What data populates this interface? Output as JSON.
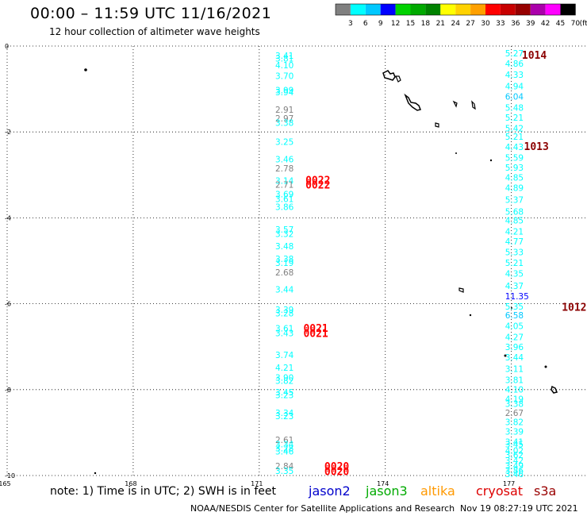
{
  "header": {
    "title": "00:00 – 11:59 UTC 11/16/2021",
    "subtitle": "12 hour collection of altimeter wave heights"
  },
  "color_scale": {
    "labels": [
      "3",
      "6",
      "9",
      "12",
      "15",
      "18",
      "21",
      "24",
      "27",
      "30",
      "33",
      "36",
      "39",
      "42",
      "45",
      "70",
      "(ft)"
    ],
    "colors": [
      "#808080",
      "#00ffff",
      "#00c8ff",
      "#0000ff",
      "#00d200",
      "#00aa00",
      "#008200",
      "#ffff00",
      "#ffd200",
      "#ffa000",
      "#ff0000",
      "#c80000",
      "#960000",
      "#aa00aa",
      "#ff00ff",
      "#000000"
    ]
  },
  "footer": {
    "note": "note: 1) Time is in UTC; 2) SWH is in feet",
    "satellites": [
      {
        "name": "jason2",
        "color": "#0000cc"
      },
      {
        "name": "jason3",
        "color": "#00aa00"
      },
      {
        "name": "altika",
        "color": "#ff9900"
      },
      {
        "name": "cryosat",
        "color": "#dd0000"
      },
      {
        "name": "s3a",
        "color": "#990000"
      }
    ],
    "credit": "NOAA/NESDIS Center for Satellite Applications and Research",
    "generated": "Nov 19 08:27:19 UTC 2021"
  },
  "chart_data": {
    "type": "scatter",
    "x_ticks": [
      "165",
      "168",
      "171",
      "174",
      "177"
    ],
    "y_ticks": [
      "0",
      "-2",
      "-4",
      "-6",
      "-8",
      "-10"
    ],
    "xlim": [
      165,
      178.8
    ],
    "ylim": [
      -10,
      0
    ],
    "grid": true,
    "tracks": [
      {
        "satellite": "cryosat",
        "points": [
          {
            "x": 171.38,
            "y": -0.22,
            "v": "3.41"
          },
          {
            "x": 171.38,
            "y": -0.29,
            "v": "3.81"
          },
          {
            "x": 171.38,
            "y": -0.44,
            "v": "4.10"
          },
          {
            "x": 171.38,
            "y": -0.69,
            "v": "3.70"
          },
          {
            "x": 171.38,
            "y": -1.03,
            "v": "3.99"
          },
          {
            "x": 171.38,
            "y": -1.07,
            "v": "3.94"
          },
          {
            "x": 171.38,
            "y": -1.48,
            "v": "2.91"
          },
          {
            "x": 171.38,
            "y": -1.68,
            "v": "2.97"
          },
          {
            "x": 171.38,
            "y": -1.78,
            "v": "3.38"
          },
          {
            "x": 171.38,
            "y": -2.23,
            "v": "3.25"
          },
          {
            "x": 171.38,
            "y": -2.63,
            "v": "3.46"
          },
          {
            "x": 171.38,
            "y": -2.85,
            "v": "2.78"
          },
          {
            "x": 171.38,
            "y": -3.13,
            "v": "3.14"
          },
          {
            "x": 171.38,
            "y": -3.23,
            "v": "2.71"
          },
          {
            "x": 171.38,
            "y": -3.45,
            "v": "3.69"
          },
          {
            "x": 171.38,
            "y": -3.56,
            "v": "3.61"
          },
          {
            "x": 171.38,
            "y": -3.74,
            "v": "3.86"
          },
          {
            "x": 171.38,
            "y": -4.27,
            "v": "3.57"
          },
          {
            "x": 171.38,
            "y": -4.37,
            "v": "3.32"
          },
          {
            "x": 171.38,
            "y": -4.66,
            "v": "3.48"
          },
          {
            "x": 171.38,
            "y": -4.95,
            "v": "3.38"
          },
          {
            "x": 171.38,
            "y": -5.05,
            "v": "3.19"
          },
          {
            "x": 171.38,
            "y": -5.27,
            "v": "2.68"
          },
          {
            "x": 171.38,
            "y": -5.67,
            "v": "3.44"
          },
          {
            "x": 171.38,
            "y": -6.14,
            "v": "3.39"
          },
          {
            "x": 171.38,
            "y": -6.22,
            "v": "3.28"
          },
          {
            "x": 171.38,
            "y": -6.57,
            "v": "3.61"
          },
          {
            "x": 171.38,
            "y": -6.68,
            "v": "3.43"
          },
          {
            "x": 171.38,
            "y": -7.19,
            "v": "3.74"
          },
          {
            "x": 171.38,
            "y": -7.49,
            "v": "4.21"
          },
          {
            "x": 171.38,
            "y": -7.72,
            "v": "3.90"
          },
          {
            "x": 171.38,
            "y": -7.79,
            "v": "3.82"
          },
          {
            "x": 171.38,
            "y": -8.06,
            "v": "3.45"
          },
          {
            "x": 171.38,
            "y": -8.12,
            "v": "3.23"
          },
          {
            "x": 171.38,
            "y": -8.54,
            "v": "3.34"
          },
          {
            "x": 171.38,
            "y": -8.61,
            "v": "3.23"
          },
          {
            "x": 171.38,
            "y": -9.17,
            "v": "2.61"
          },
          {
            "x": 171.38,
            "y": -9.27,
            "v": "3.34"
          },
          {
            "x": 171.38,
            "y": -9.36,
            "v": "3.28"
          },
          {
            "x": 171.38,
            "y": -9.44,
            "v": "3.46"
          },
          {
            "x": 171.38,
            "y": -9.78,
            "v": "2.84"
          },
          {
            "x": 171.38,
            "y": -9.89,
            "v": "3.35"
          }
        ],
        "times": [
          {
            "x": 172.1,
            "y": -3.11,
            "label": "0022"
          },
          {
            "x": 172.1,
            "y": -3.23,
            "label": "0022"
          },
          {
            "x": 172.05,
            "y": -6.56,
            "label": "0021"
          },
          {
            "x": 172.05,
            "y": -6.68,
            "label": "0021"
          },
          {
            "x": 172.55,
            "y": -9.78,
            "label": "0020"
          },
          {
            "x": 172.55,
            "y": -9.9,
            "label": "0020"
          }
        ]
      },
      {
        "satellite": "s3a",
        "points": [
          {
            "x": 176.85,
            "y": -0.17,
            "v": "5.27"
          },
          {
            "x": 176.85,
            "y": -0.41,
            "v": "4.86"
          },
          {
            "x": 176.85,
            "y": -0.67,
            "v": "4.33"
          },
          {
            "x": 176.85,
            "y": -0.93,
            "v": "4.94"
          },
          {
            "x": 176.85,
            "y": -1.17,
            "v": "6.04"
          },
          {
            "x": 176.85,
            "y": -1.43,
            "v": "5.48"
          },
          {
            "x": 176.85,
            "y": -1.66,
            "v": "5.21"
          },
          {
            "x": 176.85,
            "y": -1.91,
            "v": "5.42"
          },
          {
            "x": 176.85,
            "y": -2.11,
            "v": "5.21"
          },
          {
            "x": 176.85,
            "y": -2.35,
            "v": "4.43"
          },
          {
            "x": 176.85,
            "y": -2.6,
            "v": "5.59"
          },
          {
            "x": 176.85,
            "y": -2.83,
            "v": "5.93"
          },
          {
            "x": 176.85,
            "y": -3.06,
            "v": "4.85"
          },
          {
            "x": 176.85,
            "y": -3.3,
            "v": "4.89"
          },
          {
            "x": 176.85,
            "y": -3.58,
            "v": "5.37"
          },
          {
            "x": 176.85,
            "y": -3.85,
            "v": "5.68"
          },
          {
            "x": 176.85,
            "y": -4.06,
            "v": "4.85"
          },
          {
            "x": 176.85,
            "y": -4.32,
            "v": "4.21"
          },
          {
            "x": 176.85,
            "y": -4.55,
            "v": "4.77"
          },
          {
            "x": 176.85,
            "y": -4.8,
            "v": "5.33"
          },
          {
            "x": 176.85,
            "y": -5.05,
            "v": "5.21"
          },
          {
            "x": 176.85,
            "y": -5.3,
            "v": "4.35"
          },
          {
            "x": 176.85,
            "y": -5.58,
            "v": "4.37"
          },
          {
            "x": 176.85,
            "y": -5.82,
            "v": "11.35"
          },
          {
            "x": 176.85,
            "y": -6.06,
            "v": "5.35"
          },
          {
            "x": 176.85,
            "y": -6.27,
            "v": "6.58"
          },
          {
            "x": 176.85,
            "y": -6.52,
            "v": "4.05"
          },
          {
            "x": 176.85,
            "y": -6.77,
            "v": "4.27"
          },
          {
            "x": 176.85,
            "y": -7.01,
            "v": "3.96"
          },
          {
            "x": 176.85,
            "y": -7.25,
            "v": "3.44"
          },
          {
            "x": 176.85,
            "y": -7.51,
            "v": "3.11"
          },
          {
            "x": 176.85,
            "y": -7.77,
            "v": "3.81"
          },
          {
            "x": 176.85,
            "y": -7.99,
            "v": "4.10"
          },
          {
            "x": 176.85,
            "y": -8.22,
            "v": "4.19"
          },
          {
            "x": 176.85,
            "y": -8.33,
            "v": "3.38"
          },
          {
            "x": 176.85,
            "y": -8.54,
            "v": "2.67"
          },
          {
            "x": 176.85,
            "y": -8.75,
            "v": "3.82"
          },
          {
            "x": 176.85,
            "y": -8.97,
            "v": "3.39"
          },
          {
            "x": 176.85,
            "y": -9.21,
            "v": "3.41"
          },
          {
            "x": 176.85,
            "y": -9.27,
            "v": "3.45"
          },
          {
            "x": 176.85,
            "y": -9.42,
            "v": "4.02"
          },
          {
            "x": 176.85,
            "y": -9.52,
            "v": "3.62"
          },
          {
            "x": 176.85,
            "y": -9.65,
            "v": "3.42"
          },
          {
            "x": 176.85,
            "y": -9.77,
            "v": "3.49"
          },
          {
            "x": 176.85,
            "y": -9.88,
            "v": "3.86"
          },
          {
            "x": 176.85,
            "y": -9.96,
            "v": "3.46"
          }
        ],
        "times": [
          {
            "x": 177.25,
            "y": -0.2,
            "label": "1014"
          },
          {
            "x": 177.3,
            "y": -2.33,
            "label": "1013"
          },
          {
            "x": 178.2,
            "y": -6.07,
            "label": "1012"
          }
        ]
      }
    ]
  }
}
